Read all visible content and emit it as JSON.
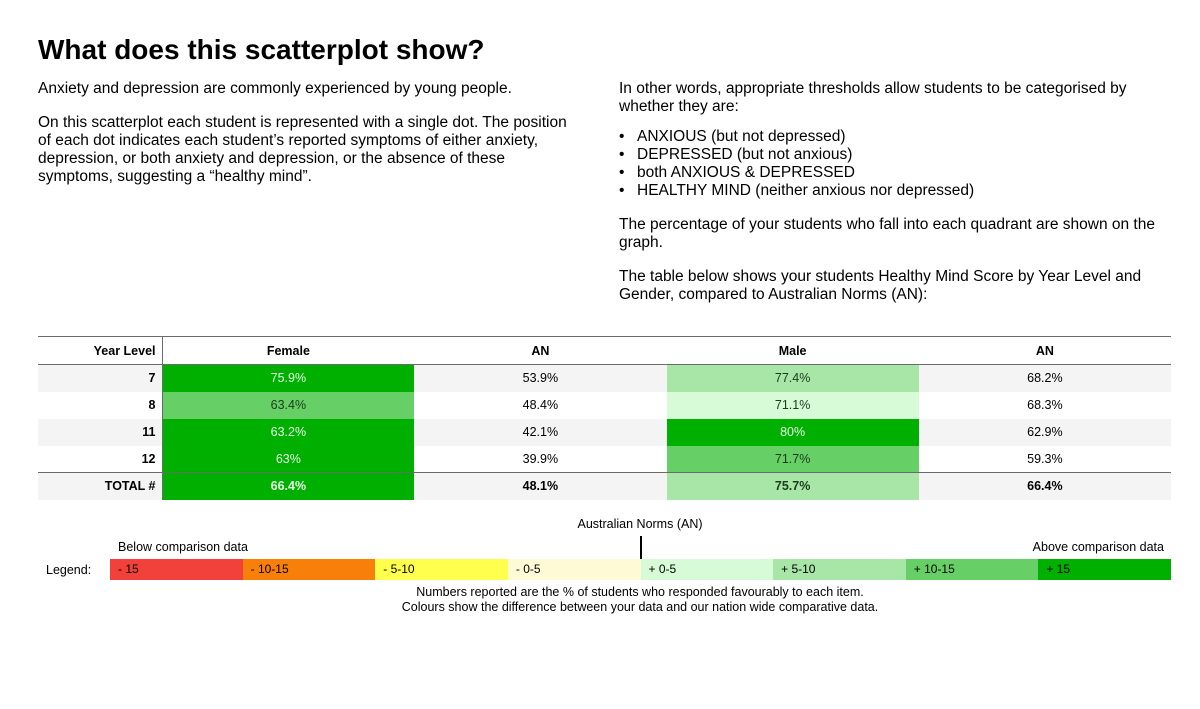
{
  "title": "What does this scatterplot show?",
  "left": {
    "p1": "Anxiety and depression are commonly experienced by young people.",
    "p2": "On this scatterplot each student is represented with a single dot. The position of each dot indicates each student’s reported symptoms of either anxiety, depression, or both anxiety and depression, or the absence of these symptoms, suggesting a “healthy mind”."
  },
  "right": {
    "p1": "In other words, appropriate thresholds allow students to be categorised by whether they are:",
    "bullets": [
      "ANXIOUS (but not depressed)",
      "DEPRESSED (but not anxious)",
      "both ANXIOUS & DEPRESSED",
      "HEALTHY MIND (neither anxious nor depressed)"
    ],
    "p2": "The percentage of your students who fall into each quadrant are shown on the graph.",
    "p3": "The table below shows your students Healthy Mind Score by Year Level and Gender, compared to Australian Norms (AN):"
  },
  "table": {
    "headers": [
      "Year Level",
      "Female",
      "AN",
      "Male",
      "AN"
    ],
    "rows": [
      {
        "year": "7",
        "female": "75.9%",
        "female_an": "53.9%",
        "male": "77.4%",
        "male_an": "68.2%"
      },
      {
        "year": "8",
        "female": "63.4%",
        "female_an": "48.4%",
        "male": "71.1%",
        "male_an": "68.3%"
      },
      {
        "year": "11",
        "female": "63.2%",
        "female_an": "42.1%",
        "male": "80%",
        "male_an": "62.9%"
      },
      {
        "year": "12",
        "female": "63%",
        "female_an": "39.9%",
        "male": "71.7%",
        "male_an": "59.3%"
      }
    ],
    "total": {
      "year": "TOTAL #",
      "female": "66.4%",
      "female_an": "48.1%",
      "male": "75.7%",
      "male_an": "66.4%"
    }
  },
  "legend": {
    "norms_label": "Australian Norms (AN)",
    "below_label": "Below comparison data",
    "above_label": "Above comparison data",
    "label": "Legend:",
    "segments": [
      {
        "label": "- 15",
        "color": "#f2413a"
      },
      {
        "label": "- 10-15",
        "color": "#f97f0b"
      },
      {
        "label": "- 5-10",
        "color": "#ffff4d"
      },
      {
        "label": "- 0-5",
        "color": "#fffad6"
      },
      {
        "label": "+ 0-5",
        "color": "#d6fbd6"
      },
      {
        "label": "+ 5-10",
        "color": "#a8e6a8"
      },
      {
        "label": "+ 10-15",
        "color": "#66cf66"
      },
      {
        "label": "+ 15",
        "color": "#00b000"
      }
    ],
    "foot1": "Numbers reported are the % of students who responded favourably to each item.",
    "foot2": "Colours show the difference between your data and our nation wide comparative data."
  }
}
